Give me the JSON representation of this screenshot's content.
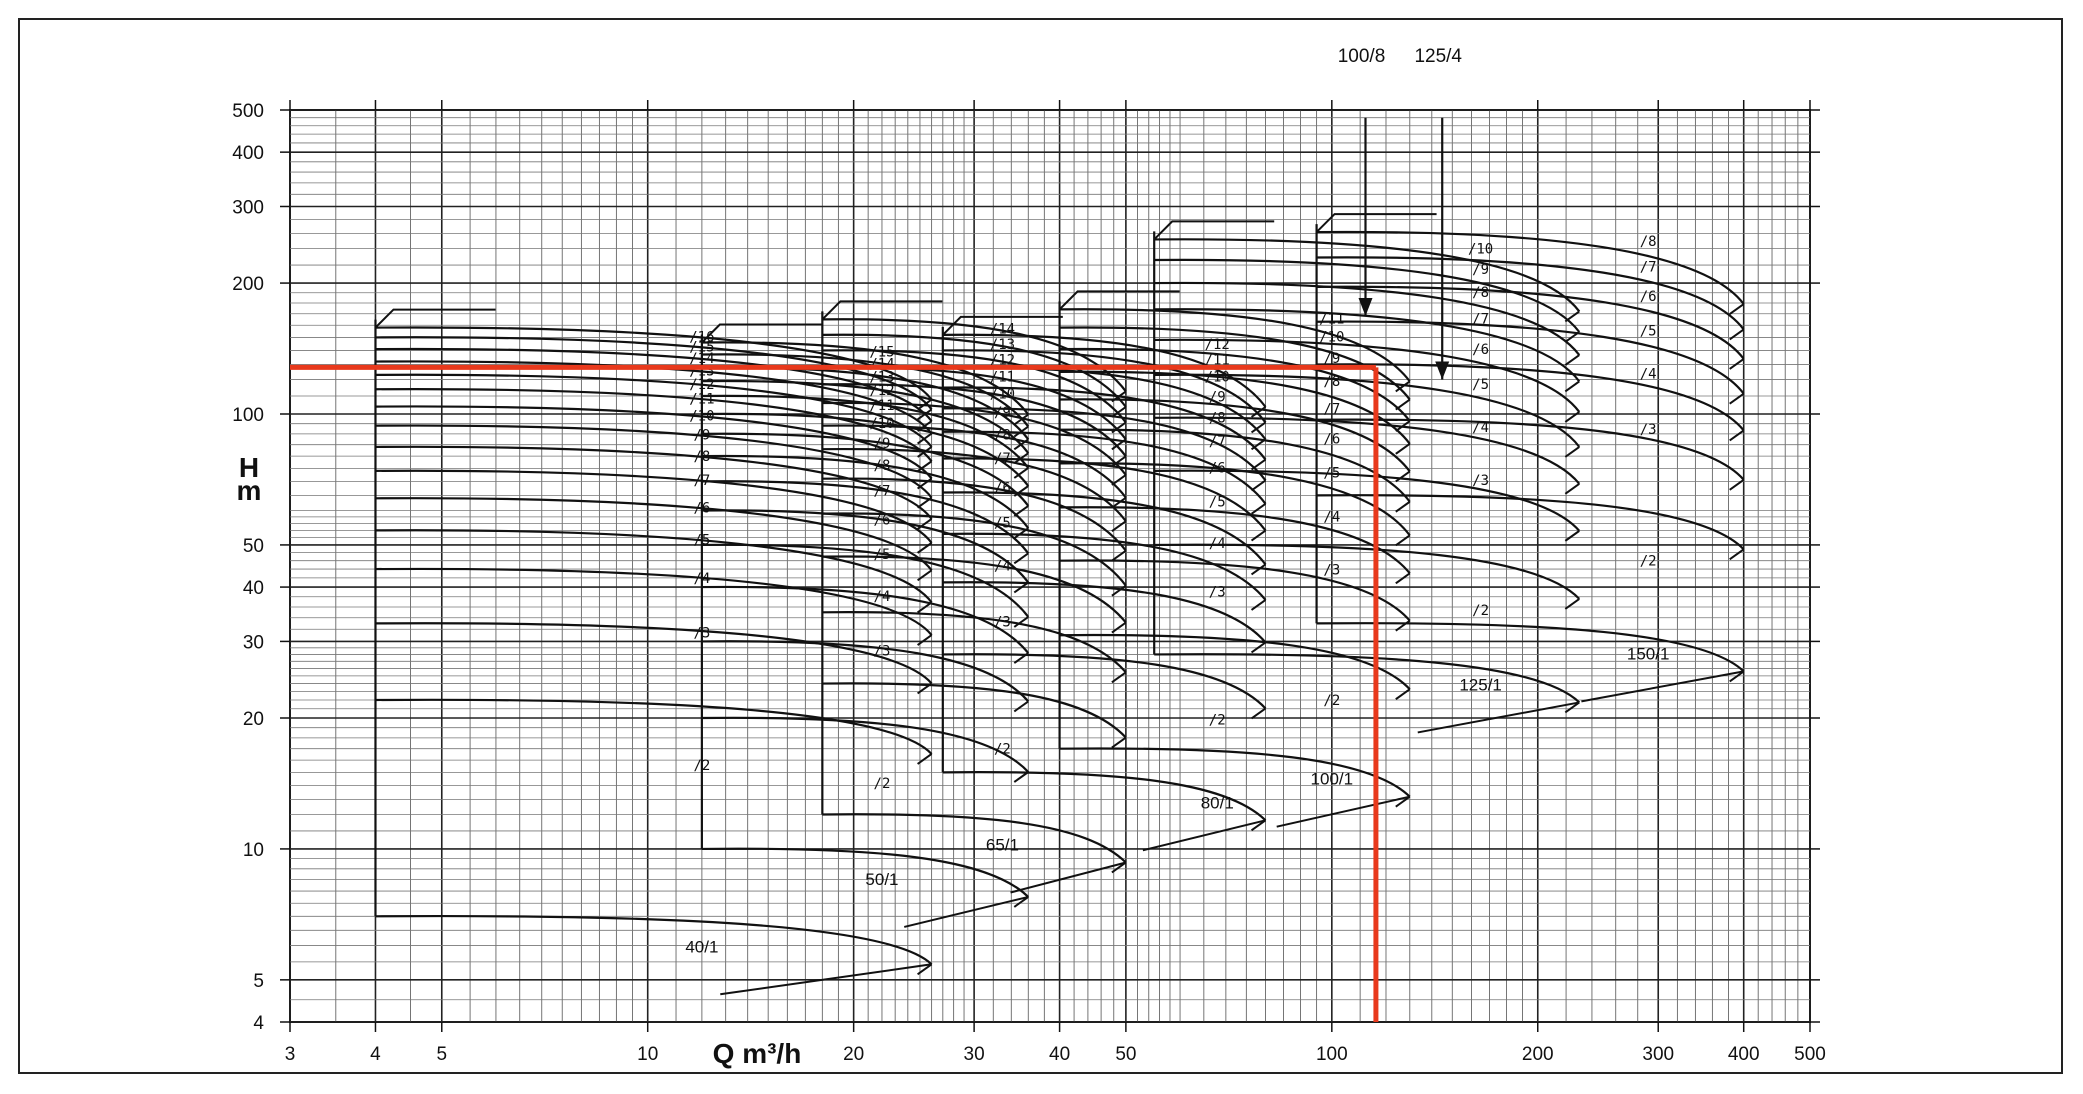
{
  "chart_data": {
    "type": "line",
    "title": "",
    "xlabel": "Q m³/h",
    "ylabel_top": "H",
    "ylabel_bottom": "m",
    "x_scale": "log",
    "y_scale": "log",
    "xlim": [
      3,
      500
    ],
    "ylim": [
      4,
      500
    ],
    "grid": true,
    "x_ticks": [
      3,
      4,
      5,
      10,
      20,
      30,
      40,
      50,
      100,
      200,
      300,
      400,
      500
    ],
    "y_ticks": [
      4,
      5,
      10,
      20,
      30,
      40,
      50,
      100,
      200,
      300,
      400,
      500
    ],
    "selection_color": "#e8391c",
    "selection_point": {
      "Q": 116,
      "H": 128
    },
    "arrows": [
      {
        "label": "100/8",
        "Q": 112,
        "H_from": 480,
        "H_to": 168
      },
      {
        "label": "125/4",
        "Q": 145,
        "H_from": 480,
        "H_to": 120
      }
    ],
    "families": [
      {
        "name": "40/1",
        "q_start": 4,
        "q_end": 26,
        "q_label": 12,
        "h_first": 7,
        "h_last_label": 16,
        "max_stage": 16,
        "stages": [
          {
            "n": 1,
            "h": 7
          },
          {
            "n": 2,
            "h": 22
          },
          {
            "n": 3,
            "h": 33
          },
          {
            "n": 4,
            "h": 44
          },
          {
            "n": 5,
            "h": 54
          },
          {
            "n": 6,
            "h": 64
          },
          {
            "n": 7,
            "h": 74
          },
          {
            "n": 8,
            "h": 84
          },
          {
            "n": 9,
            "h": 94
          },
          {
            "n": 10,
            "h": 104
          },
          {
            "n": 11,
            "h": 114
          },
          {
            "n": 12,
            "h": 123
          },
          {
            "n": 13,
            "h": 132
          },
          {
            "n": 14,
            "h": 141
          },
          {
            "n": 15,
            "h": 150
          },
          {
            "n": 16,
            "h": 158
          }
        ]
      },
      {
        "name": "50/1",
        "q_start": 12,
        "q_end": 36,
        "q_label": 22,
        "h_first": 10,
        "h_last_label": 15,
        "max_stage": 15,
        "stages": [
          {
            "n": 1,
            "h": 10
          },
          {
            "n": 2,
            "h": 20
          },
          {
            "n": 3,
            "h": 30
          },
          {
            "n": 4,
            "h": 40
          },
          {
            "n": 5,
            "h": 50
          },
          {
            "n": 6,
            "h": 60
          },
          {
            "n": 7,
            "h": 70
          },
          {
            "n": 8,
            "h": 80
          },
          {
            "n": 9,
            "h": 90
          },
          {
            "n": 10,
            "h": 100
          },
          {
            "n": 11,
            "h": 110
          },
          {
            "n": 12,
            "h": 119
          },
          {
            "n": 13,
            "h": 128
          },
          {
            "n": 14,
            "h": 137
          },
          {
            "n": 15,
            "h": 146
          }
        ]
      },
      {
        "name": "65/1",
        "q_start": 18,
        "q_end": 50,
        "q_label": 33,
        "h_first": 12,
        "h_last_label": 14,
        "max_stage": 14,
        "stages": [
          {
            "n": 1,
            "h": 12
          },
          {
            "n": 2,
            "h": 24
          },
          {
            "n": 3,
            "h": 35
          },
          {
            "n": 4,
            "h": 47
          },
          {
            "n": 5,
            "h": 59
          },
          {
            "n": 6,
            "h": 71
          },
          {
            "n": 7,
            "h": 83
          },
          {
            "n": 8,
            "h": 94
          },
          {
            "n": 9,
            "h": 106
          },
          {
            "n": 10,
            "h": 117
          },
          {
            "n": 11,
            "h": 128
          },
          {
            "n": 12,
            "h": 140
          },
          {
            "n": 13,
            "h": 152
          },
          {
            "n": 14,
            "h": 165
          }
        ]
      },
      {
        "name": "80/1",
        "q_start": 27,
        "q_end": 80,
        "q_label": 68,
        "h_first": 15,
        "h_last_label": 12,
        "max_stage": 12,
        "stages": [
          {
            "n": 1,
            "h": 15
          },
          {
            "n": 2,
            "h": 28
          },
          {
            "n": 3,
            "h": 41
          },
          {
            "n": 4,
            "h": 53
          },
          {
            "n": 5,
            "h": 66
          },
          {
            "n": 6,
            "h": 79
          },
          {
            "n": 7,
            "h": 91
          },
          {
            "n": 8,
            "h": 103
          },
          {
            "n": 9,
            "h": 115
          },
          {
            "n": 10,
            "h": 128
          },
          {
            "n": 11,
            "h": 140
          },
          {
            "n": 12,
            "h": 152
          }
        ]
      },
      {
        "name": "100/1",
        "q_start": 40,
        "q_end": 130,
        "q_label": 100,
        "h_first": 17,
        "h_last_label": 11,
        "max_stage": 11,
        "stages": [
          {
            "n": 1,
            "h": 17
          },
          {
            "n": 2,
            "h": 31
          },
          {
            "n": 3,
            "h": 46
          },
          {
            "n": 4,
            "h": 61
          },
          {
            "n": 5,
            "h": 77
          },
          {
            "n": 6,
            "h": 92
          },
          {
            "n": 7,
            "h": 108
          },
          {
            "n": 8,
            "h": 125
          },
          {
            "n": 9,
            "h": 141
          },
          {
            "n": 10,
            "h": 158
          },
          {
            "n": 11,
            "h": 174
          }
        ]
      },
      {
        "name": "125/1",
        "q_start": 55,
        "q_end": 230,
        "q_label": 165,
        "h_first": 28,
        "h_last_label": 10,
        "max_stage": 10,
        "stages": [
          {
            "n": 1,
            "h": 28
          },
          {
            "n": 2,
            "h": 50
          },
          {
            "n": 3,
            "h": 74
          },
          {
            "n": 4,
            "h": 98
          },
          {
            "n": 5,
            "h": 123
          },
          {
            "n": 6,
            "h": 148
          },
          {
            "n": 7,
            "h": 174
          },
          {
            "n": 8,
            "h": 200
          },
          {
            "n": 9,
            "h": 226
          },
          {
            "n": 10,
            "h": 252
          }
        ]
      },
      {
        "name": "150/1",
        "q_start": 95,
        "q_end": 400,
        "q_label": 290,
        "h_first": 33,
        "h_last_label": 8,
        "max_stage": 8,
        "stages": [
          {
            "n": 1,
            "h": 33
          },
          {
            "n": 2,
            "h": 65
          },
          {
            "n": 3,
            "h": 97
          },
          {
            "n": 4,
            "h": 130
          },
          {
            "n": 5,
            "h": 163
          },
          {
            "n": 6,
            "h": 196
          },
          {
            "n": 7,
            "h": 229
          },
          {
            "n": 8,
            "h": 262
          }
        ]
      }
    ]
  }
}
